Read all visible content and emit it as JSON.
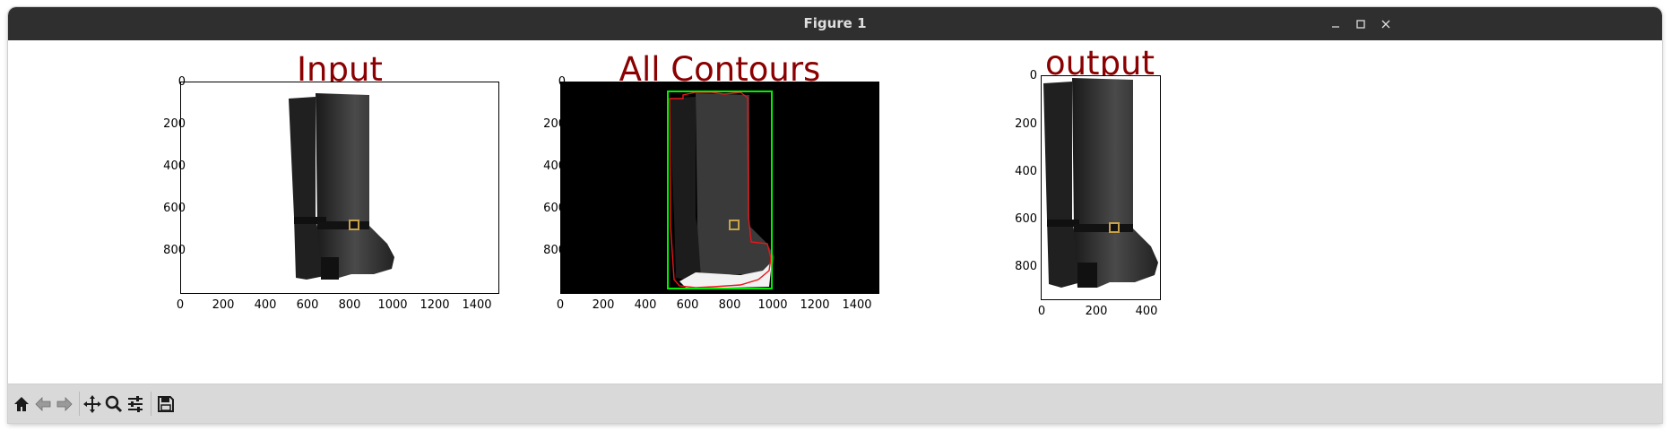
{
  "window": {
    "title": "Figure 1"
  },
  "controls": {
    "minimize": "minimize",
    "maximize": "maximize",
    "close": "close"
  },
  "plots": [
    {
      "title": "Input",
      "xticks": [
        "0",
        "200",
        "400",
        "600",
        "800",
        "1000",
        "1200",
        "1400"
      ],
      "yticks": [
        "0",
        "200",
        "400",
        "600",
        "800"
      ],
      "background": "#ffffff"
    },
    {
      "title": "All Contours",
      "xticks": [
        "0",
        "200",
        "400",
        "600",
        "800",
        "1000",
        "1200",
        "1400"
      ],
      "yticks": [
        "0",
        "200",
        "400",
        "600",
        "800"
      ],
      "background": "#000000",
      "contour_color": "#e8161b",
      "bbox_color": "#00ff00"
    },
    {
      "title": "output",
      "xticks": [
        "0",
        "200",
        "400"
      ],
      "yticks": [
        "0",
        "200",
        "400",
        "600",
        "800"
      ],
      "background": "#ffffff"
    }
  ],
  "toolbar": [
    "home-icon",
    "back-icon",
    "forward-icon",
    "pan-icon",
    "zoom-icon",
    "configure-icon",
    "save-icon"
  ]
}
